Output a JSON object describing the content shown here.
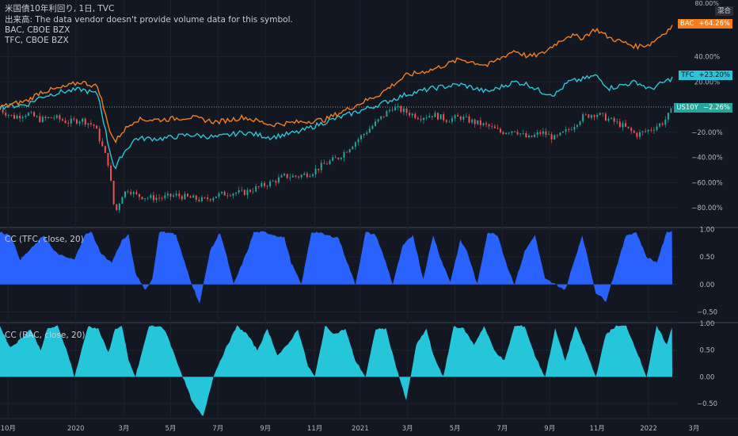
{
  "header": {
    "line1": "米国債10年利回り, 1日, TVC",
    "line2": "出来高: The data vendor doesn't provide volume data for this symbol.",
    "line3": "BAC, CBOE BZX",
    "line4": "TFC, CBOE BZX"
  },
  "scale_top": {
    "label": "80.00%",
    "mode": "混合"
  },
  "tags": {
    "bac": {
      "name": "BAC",
      "value": "+64.26%",
      "color": "#f57c1f"
    },
    "tfc": {
      "name": "TFC",
      "value": "+23.20%",
      "color": "#2cc4d8"
    },
    "us10y": {
      "name": "US10Y",
      "value": "−2.26%",
      "color": "#26a69a"
    }
  },
  "pane2_label": "CC (TFC, close, 20)",
  "pane3_label": "CC (BAC, close, 20)",
  "colors": {
    "bac": "#f57c1f",
    "tfc": "#2cc4d8",
    "cc_tfc": "#2962ff",
    "cc_bac": "#26c6da",
    "up": "#26a69a",
    "down": "#ef5350",
    "grid": "#1e222d",
    "bg": "#131722"
  },
  "chart_data": [
    {
      "type": "line",
      "y_unit": "%",
      "x_ticks": [
        "10月",
        "2020",
        "3月",
        "5月",
        "7月",
        "9月",
        "11月",
        "2021",
        "3月",
        "5月",
        "7月",
        "9月",
        "11月",
        "2022",
        "3月"
      ],
      "y_ticks": [
        "40.00%",
        "20.00%",
        "−20.00%",
        "−40.00%",
        "−60.00%",
        "−80.00%"
      ],
      "ylim": [
        -95,
        85
      ],
      "series": [
        {
          "name": "BAC",
          "x": [
            0,
            4,
            6,
            9,
            12,
            14.5,
            16,
            17,
            18,
            20,
            24,
            28,
            32,
            36,
            40,
            44,
            48,
            52,
            56,
            60,
            64,
            68,
            72,
            76,
            78,
            80,
            82,
            84,
            86,
            88,
            90,
            94,
            96,
            99.3
          ],
          "values": [
            0,
            5,
            12,
            15,
            20,
            16,
            -15,
            -28,
            -20,
            -10,
            -10,
            -8,
            -12,
            -8,
            -14,
            -12,
            -10,
            0,
            10,
            25,
            30,
            38,
            33,
            45,
            40,
            42,
            50,
            57,
            55,
            62,
            55,
            48,
            50,
            64
          ]
        },
        {
          "name": "TFC",
          "x": [
            0,
            4,
            6,
            9,
            12,
            14.5,
            16,
            17,
            18,
            20,
            24,
            28,
            32,
            36,
            40,
            44,
            48,
            52,
            56,
            60,
            64,
            68,
            72,
            76,
            78,
            80,
            82,
            84,
            86,
            88,
            90,
            94,
            96,
            99.3
          ],
          "values": [
            0,
            2,
            8,
            12,
            14,
            10,
            -30,
            -50,
            -38,
            -25,
            -25,
            -22,
            -24,
            -20,
            -24,
            -20,
            -12,
            -5,
            2,
            10,
            15,
            18,
            12,
            20,
            18,
            12,
            10,
            20,
            22,
            25,
            15,
            20,
            14,
            23
          ]
        },
        {
          "name": "US10Y",
          "type": "candles",
          "x": [
            0,
            2,
            4,
            6,
            8,
            10,
            12,
            14,
            16,
            17,
            18,
            19,
            20,
            22,
            24,
            26,
            28,
            30,
            32,
            34,
            36,
            38,
            40,
            42,
            44,
            46,
            48,
            50,
            52,
            54,
            56,
            58,
            60,
            62,
            64,
            66,
            68,
            70,
            72,
            74,
            76,
            78,
            80,
            82,
            84,
            86,
            88,
            90,
            92,
            94,
            96,
            98,
            99.3
          ],
          "values": [
            -2,
            -8,
            -5,
            -10,
            -8,
            -12,
            -10,
            -15,
            -45,
            -85,
            -70,
            -65,
            -70,
            -72,
            -72,
            -70,
            -72,
            -74,
            -70,
            -68,
            -68,
            -64,
            -60,
            -55,
            -55,
            -52,
            -45,
            -40,
            -30,
            -20,
            -10,
            0,
            -4,
            -8,
            -6,
            -10,
            -8,
            -12,
            -15,
            -20,
            -18,
            -25,
            -20,
            -25,
            -18,
            -8,
            -5,
            -10,
            -15,
            -22,
            -18,
            -12,
            -2
          ]
        }
      ]
    },
    {
      "type": "area",
      "name": "CC (TFC, close, 20)",
      "y_ticks": [
        "1.00",
        "0.50",
        "0.00",
        "−0.50"
      ],
      "ylim": [
        -0.68,
        1.02
      ],
      "x": [
        0,
        1.5,
        3,
        5,
        6.5,
        8,
        9.5,
        11,
        12.5,
        13.5,
        15,
        16.5,
        18,
        19,
        20,
        21.5,
        22.5,
        23.5,
        25,
        26,
        27,
        28.5,
        29.5,
        31,
        32.5,
        33.5,
        34.5,
        35.5,
        36.5,
        37.5,
        39,
        40.5,
        42,
        43,
        44.5,
        46,
        47,
        48,
        50,
        51,
        52.5,
        54,
        55.5,
        57,
        58,
        59.5,
        61,
        62.5,
        64,
        65,
        66.5,
        68,
        69,
        70.5,
        72,
        73.5,
        75,
        76,
        77.5,
        79,
        80.5,
        82,
        83.5,
        85,
        86,
        88,
        89.5,
        91,
        92.5,
        94,
        95.5,
        97,
        98.5,
        99.3
      ],
      "values": [
        0.95,
        0.9,
        0.45,
        0.7,
        0.9,
        0.6,
        0.5,
        0.45,
        0.9,
        0.95,
        0.55,
        0.4,
        0.8,
        0.9,
        0.2,
        -0.1,
        0.1,
        0.95,
        0.95,
        0.9,
        0.5,
        -0.05,
        -0.35,
        0.6,
        0.95,
        0.5,
        0.0,
        0.3,
        0.6,
        0.95,
        0.95,
        0.9,
        0.85,
        0.4,
        0.0,
        0.95,
        0.95,
        0.9,
        0.85,
        0.5,
        0.0,
        0.95,
        0.9,
        0.4,
        0.0,
        0.7,
        0.9,
        0.1,
        0.9,
        0.5,
        0.05,
        0.8,
        0.6,
        0.0,
        0.95,
        0.9,
        0.3,
        0.0,
        0.6,
        0.9,
        0.1,
        0.0,
        -0.1,
        0.5,
        0.9,
        -0.15,
        -0.3,
        0.3,
        0.9,
        0.95,
        0.5,
        0.4,
        0.95,
        0.98
      ]
    },
    {
      "type": "area",
      "name": "CC (BAC, close, 20)",
      "y_ticks": [
        "1.00",
        "0.50",
        "0.00",
        "−0.50"
      ],
      "ylim": [
        -0.78,
        1.0
      ],
      "x": [
        0,
        1.5,
        3,
        4.5,
        6,
        7,
        8.5,
        10,
        11,
        13,
        14.5,
        16,
        17,
        18,
        19,
        20,
        22,
        23.5,
        24.5,
        25.5,
        27,
        28.5,
        30,
        31.5,
        32.5,
        34,
        35,
        36.5,
        38,
        39.5,
        41,
        42.5,
        44,
        45.5,
        46.5,
        48,
        49.5,
        51,
        52.5,
        54,
        55.5,
        57,
        58.5,
        60,
        61.5,
        63,
        64,
        65.5,
        67,
        68.5,
        70,
        71.5,
        73,
        74.5,
        76,
        77.5,
        79,
        80.5,
        82,
        83.5,
        85,
        86.5,
        88,
        89.5,
        91,
        92.5,
        94,
        95.5,
        97,
        98.5,
        99.3
      ],
      "values": [
        0.95,
        0.55,
        0.7,
        0.9,
        0.5,
        0.9,
        0.95,
        0.45,
        0.0,
        0.95,
        0.9,
        0.45,
        0.9,
        0.95,
        0.3,
        0.0,
        0.95,
        0.95,
        0.85,
        0.5,
        0.0,
        -0.5,
        -0.75,
        0.0,
        0.3,
        0.7,
        0.95,
        0.8,
        0.5,
        0.9,
        0.4,
        0.6,
        0.9,
        0.2,
        0.0,
        0.95,
        0.8,
        0.9,
        0.3,
        0.0,
        0.9,
        0.9,
        0.2,
        -0.45,
        0.6,
        0.9,
        0.4,
        0.0,
        0.95,
        0.9,
        0.6,
        0.95,
        0.5,
        0.3,
        0.95,
        0.95,
        0.4,
        0.0,
        0.9,
        0.3,
        0.95,
        0.5,
        0.0,
        0.8,
        0.95,
        0.95,
        0.5,
        0.0,
        0.95,
        0.6,
        0.95
      ]
    }
  ]
}
